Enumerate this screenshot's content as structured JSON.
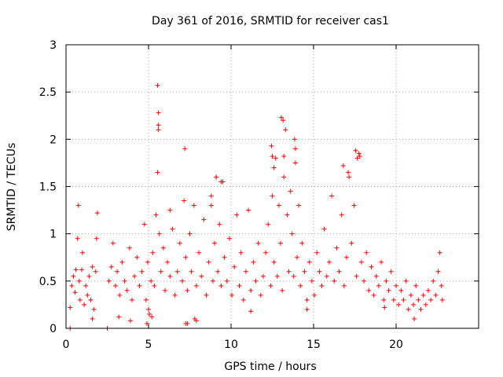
{
  "chart_data": {
    "type": "scatter",
    "title": "Day 361 of 2016, SRMTID for receiver cas1",
    "xlabel": "GPS time / hours",
    "ylabel": "SRMTID / TECUs",
    "xlim": [
      0,
      25
    ],
    "ylim": [
      0,
      3
    ],
    "x_ticks": [
      0,
      5,
      10,
      15,
      20
    ],
    "x_tick_labels": [
      "0",
      "5",
      "10",
      "15",
      "20"
    ],
    "y_ticks": [
      0,
      0.5,
      1,
      1.5,
      2,
      2.5,
      3
    ],
    "y_tick_labels": [
      "0",
      "0.5",
      "1",
      "1.5",
      "2",
      "2.5",
      "3"
    ],
    "grid": true,
    "marker": "plus",
    "series_color": "#ff0000",
    "series": [
      {
        "name": "SRMTID",
        "x": [
          0.25,
          0.35,
          0.45,
          0.55,
          0.6,
          0.7,
          0.75,
          0.8,
          0.85,
          0.95,
          1.0,
          1.1,
          1.2,
          1.3,
          1.4,
          1.5,
          1.6,
          1.7,
          1.8,
          1.85,
          1.9,
          2.6,
          2.75,
          2.85,
          3.0,
          3.1,
          3.25,
          3.4,
          3.55,
          3.7,
          3.85,
          4.0,
          4.15,
          4.3,
          4.45,
          4.6,
          4.75,
          4.85,
          4.95,
          5.05,
          5.15,
          5.25,
          5.35,
          5.45,
          5.55,
          5.6,
          5.65,
          5.75,
          5.9,
          6.0,
          6.15,
          6.3,
          6.45,
          6.6,
          6.75,
          6.9,
          7.05,
          7.15,
          7.25,
          7.35,
          7.5,
          7.6,
          7.75,
          7.9,
          8.05,
          8.2,
          8.35,
          8.5,
          8.65,
          8.8,
          8.9,
          9.0,
          9.1,
          9.2,
          9.3,
          9.4,
          9.5,
          9.6,
          9.75,
          9.9,
          10.05,
          10.2,
          10.35,
          10.5,
          10.6,
          10.75,
          10.9,
          11.05,
          11.2,
          11.35,
          11.5,
          11.65,
          11.8,
          11.95,
          12.1,
          12.25,
          12.4,
          12.5,
          12.6,
          12.7,
          12.8,
          12.9,
          13.0,
          13.1,
          13.2,
          13.3,
          13.4,
          13.5,
          13.6,
          13.7,
          13.8,
          13.9,
          14.0,
          14.1,
          14.2,
          14.3,
          14.45,
          14.6,
          14.75,
          14.9,
          15.05,
          15.2,
          15.35,
          15.5,
          15.65,
          15.8,
          15.95,
          16.1,
          16.25,
          16.4,
          16.55,
          16.7,
          16.85,
          17.0,
          17.15,
          17.3,
          17.45,
          17.6,
          17.75,
          17.9,
          18.05,
          18.2,
          18.35,
          18.5,
          18.65,
          18.8,
          18.95,
          19.1,
          19.25,
          19.4,
          19.55,
          19.7,
          19.85,
          20.0,
          20.15,
          20.3,
          20.45,
          20.6,
          20.75,
          20.9,
          21.05,
          21.2,
          21.35,
          21.5,
          21.65,
          21.8,
          21.95,
          22.1,
          22.25,
          22.4,
          22.55,
          22.65,
          22.75,
          22.8,
          0.25,
          2.5,
          5.55,
          5.6,
          5.6,
          7.2,
          7.25,
          7.35,
          7.9,
          12.45,
          12.5,
          12.6,
          13.05,
          13.15,
          13.2,
          13.85,
          13.9,
          16.8,
          17.1,
          17.55,
          17.65,
          17.8,
          9.1,
          9.4,
          6.3,
          8.8,
          4.9,
          5.0,
          5.2,
          7.8,
          1.6,
          3.2,
          3.9,
          11.2,
          14.6,
          19.3,
          21.1
        ],
        "y": [
          0.22,
          0.45,
          0.55,
          0.38,
          0.62,
          0.95,
          1.3,
          0.5,
          0.3,
          0.62,
          0.8,
          0.25,
          0.45,
          0.35,
          0.55,
          0.3,
          0.65,
          0.2,
          0.6,
          0.95,
          1.22,
          0.5,
          0.65,
          0.9,
          0.45,
          0.6,
          0.35,
          0.7,
          0.5,
          0.4,
          0.85,
          0.3,
          0.55,
          0.75,
          0.45,
          0.6,
          1.1,
          0.3,
          0.7,
          0.15,
          0.5,
          0.8,
          0.45,
          1.2,
          1.65,
          2.1,
          1.0,
          0.6,
          0.85,
          0.4,
          0.7,
          0.55,
          1.05,
          0.35,
          0.6,
          0.9,
          0.5,
          1.35,
          0.75,
          0.4,
          1.0,
          0.6,
          1.3,
          0.45,
          0.8,
          0.55,
          1.15,
          0.35,
          0.7,
          1.4,
          0.5,
          0.9,
          1.6,
          0.6,
          1.1,
          0.45,
          1.55,
          0.75,
          0.5,
          0.95,
          0.35,
          0.65,
          1.2,
          0.45,
          0.8,
          0.3,
          0.6,
          1.25,
          0.4,
          0.7,
          0.5,
          0.9,
          0.35,
          0.55,
          0.8,
          1.1,
          0.45,
          1.4,
          0.7,
          1.8,
          0.55,
          1.3,
          0.9,
          0.4,
          1.6,
          2.1,
          1.2,
          0.6,
          1.45,
          1.0,
          0.55,
          1.9,
          0.75,
          1.3,
          0.45,
          0.9,
          0.6,
          0.3,
          0.7,
          0.5,
          0.35,
          0.8,
          0.6,
          0.45,
          1.05,
          0.55,
          0.7,
          1.4,
          0.5,
          0.85,
          0.6,
          1.2,
          0.45,
          0.75,
          1.6,
          0.9,
          1.3,
          0.55,
          1.85,
          0.7,
          0.5,
          0.8,
          0.4,
          0.65,
          0.35,
          0.55,
          0.45,
          0.7,
          0.3,
          0.5,
          0.4,
          0.6,
          0.3,
          0.45,
          0.25,
          0.4,
          0.3,
          0.5,
          0.2,
          0.35,
          0.25,
          0.45,
          0.3,
          0.2,
          0.35,
          0.25,
          0.4,
          0.3,
          0.5,
          0.35,
          0.6,
          0.8,
          0.45,
          0.3,
          0.0,
          0.0,
          2.57,
          2.28,
          2.15,
          1.9,
          0.05,
          0.05,
          0.08,
          1.93,
          1.82,
          1.7,
          2.23,
          2.2,
          1.82,
          2.0,
          1.75,
          1.72,
          1.65,
          1.88,
          1.8,
          1.82,
          1.6,
          1.55,
          1.25,
          1.3,
          0.05,
          0.2,
          0.12,
          0.1,
          0.1,
          0.12,
          0.08,
          0.18,
          0.2,
          0.22,
          0.1
        ]
      }
    ]
  }
}
